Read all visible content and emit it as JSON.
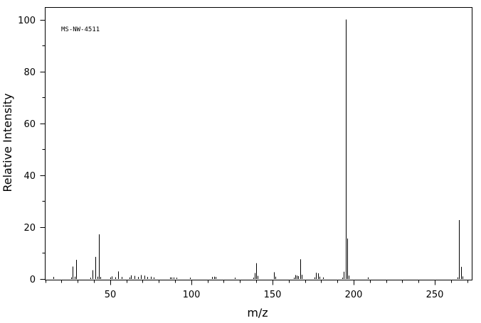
{
  "chart_data": {
    "type": "bar",
    "title": "MS-NW-4511",
    "xlabel": "m/z",
    "ylabel": "Relative Intensity",
    "xlim": [
      10,
      273
    ],
    "ylim": [
      0,
      100
    ],
    "xticks": [
      50,
      100,
      150,
      200,
      250
    ],
    "yticks": [
      0,
      20,
      40,
      60,
      80,
      100
    ],
    "xticks_minor_step": 10,
    "yticks_minor_step": 10,
    "grid": false,
    "series": [
      {
        "x": [
          15,
          26,
          27,
          28,
          29,
          38,
          39,
          41,
          42,
          43,
          44,
          50,
          51,
          53,
          55,
          57,
          62,
          63,
          65,
          67,
          69,
          71,
          73,
          75,
          77,
          87,
          88,
          89,
          91,
          99,
          113,
          114,
          115,
          127,
          138,
          139,
          140,
          141,
          151,
          152,
          163,
          164,
          165,
          166,
          167,
          168,
          176,
          177,
          178,
          179,
          181,
          193,
          194,
          195,
          196,
          197,
          209,
          264,
          265,
          266,
          267
        ],
        "values": [
          0.8,
          0.6,
          4.8,
          0.9,
          7.4,
          0.5,
          3.4,
          8.5,
          0.9,
          17.2,
          0.8,
          0.6,
          1.0,
          0.7,
          2.9,
          0.8,
          0.6,
          1.4,
          1.2,
          0.8,
          1.5,
          1.3,
          0.8,
          0.9,
          0.6,
          0.6,
          0.6,
          0.6,
          0.5,
          0.5,
          0.8,
          0.9,
          0.8,
          0.5,
          0.5,
          2.3,
          6.1,
          1.2,
          2.6,
          0.9,
          0.5,
          1.5,
          1.3,
          1.1,
          7.6,
          1.6,
          0.6,
          2.4,
          2.2,
          0.9,
          0.6,
          0.5,
          2.8,
          100,
          15.6,
          1.3,
          0.6,
          0.6,
          22.7,
          4.7,
          1.0
        ]
      }
    ]
  }
}
